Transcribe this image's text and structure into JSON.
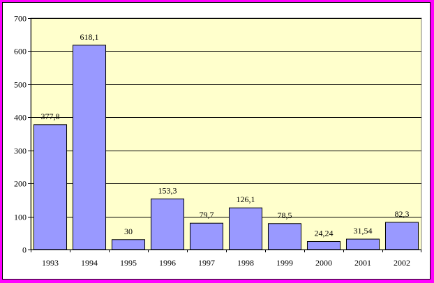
{
  "chart_data": {
    "type": "bar",
    "title": "",
    "xlabel": "",
    "ylabel": "",
    "categories": [
      "1993",
      "1994",
      "1995",
      "1996",
      "1997",
      "1998",
      "1999",
      "2000",
      "2001",
      "2002"
    ],
    "values": [
      377.8,
      618.1,
      30,
      153.3,
      79.7,
      126.1,
      78.5,
      24.24,
      31.54,
      82.3
    ],
    "value_labels": [
      "377,8",
      "618,1",
      "30",
      "153,3",
      "79,7",
      "126,1",
      "78,5",
      "24,24",
      "31,54",
      "82,3"
    ],
    "ylim": [
      0,
      700
    ],
    "yticks": [
      0,
      100,
      200,
      300,
      400,
      500,
      600,
      700
    ],
    "grid": true,
    "legend": "none",
    "colors": {
      "bar_fill": "#9999ff",
      "bar_stroke": "#000000",
      "plot_background": "#ffffcc",
      "border": "#ff00ff"
    }
  }
}
